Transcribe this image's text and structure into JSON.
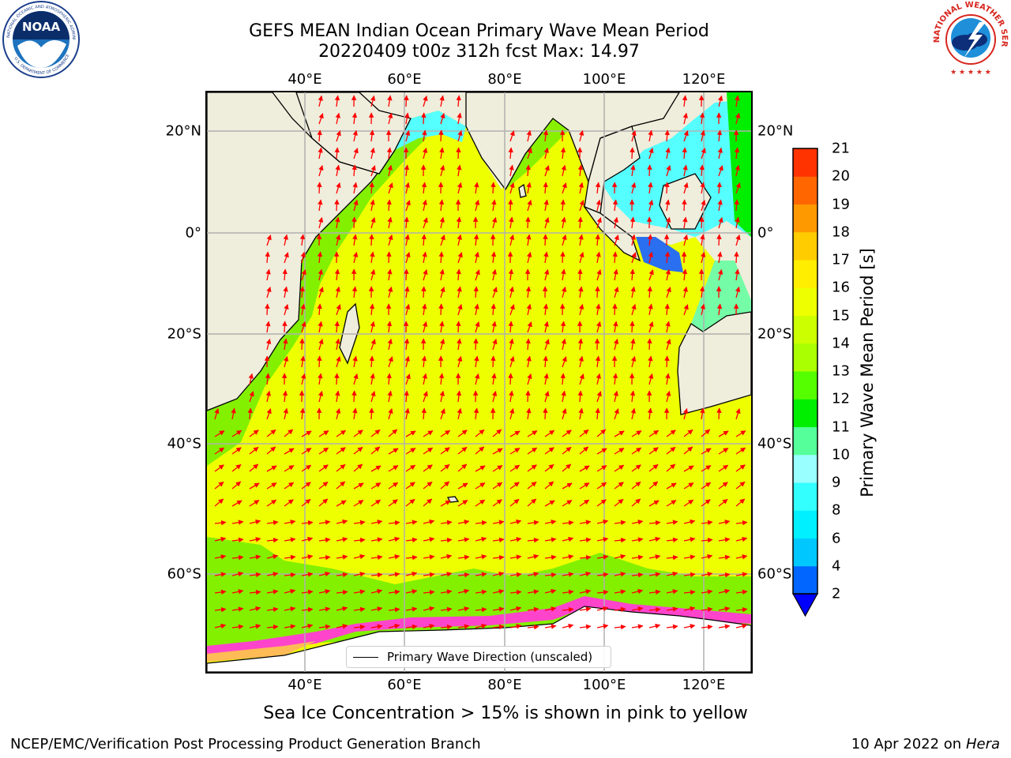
{
  "title": {
    "line1": "GEFS MEAN Indian Ocean Primary Wave Mean Period",
    "line2": "20220409 t00z 312h fcst   Max: 14.97"
  },
  "map": {
    "lon_labels": [
      "40°E",
      "60°E",
      "80°E",
      "100°E",
      "120°E"
    ],
    "lat_labels": [
      "20°N",
      "0°",
      "20°S",
      "40°S",
      "60°S"
    ],
    "extent": {
      "lon_min": 20,
      "lon_max": 130,
      "lat_min": -75,
      "lat_max": 28
    },
    "land_color": "#efeddb",
    "arrow_color": "#ff0000",
    "legend_label": "Primary Wave Direction (unscaled)"
  },
  "colorbar": {
    "label": "Primary Wave Mean Period [s]",
    "ticks": [
      "2",
      "4",
      "6",
      "8",
      "9",
      "10",
      "11",
      "12",
      "13",
      "14",
      "15",
      "16",
      "17",
      "18",
      "19",
      "20",
      "21"
    ],
    "colors": [
      "#0066ff",
      "#00c8ff",
      "#00f0ff",
      "#33ffff",
      "#99ffff",
      "#55ff99",
      "#00ee00",
      "#55ff00",
      "#aaff00",
      "#ccff00",
      "#eeff00",
      "#ffee00",
      "#ffcc00",
      "#ff9900",
      "#ff6600",
      "#ff3300"
    ],
    "under_color": "#0000ff"
  },
  "subnote": "Sea Ice Concentration > 15% is shown in pink to yellow",
  "footer": {
    "left": "NCEP/EMC/Verification Post Processing Product Generation Branch",
    "right_prefix": "10 Apr 2022 on ",
    "right_host": "Hera"
  },
  "logos": {
    "noaa": "NOAA",
    "noaa_ring": "NATIONAL OCEANIC AND ATMOSPHERIC ADMINISTRATION",
    "noaa_dept": "U.S. DEPARTMENT OF COMMERCE",
    "nws_ring": "NATIONAL WEATHER SERVICE"
  }
}
